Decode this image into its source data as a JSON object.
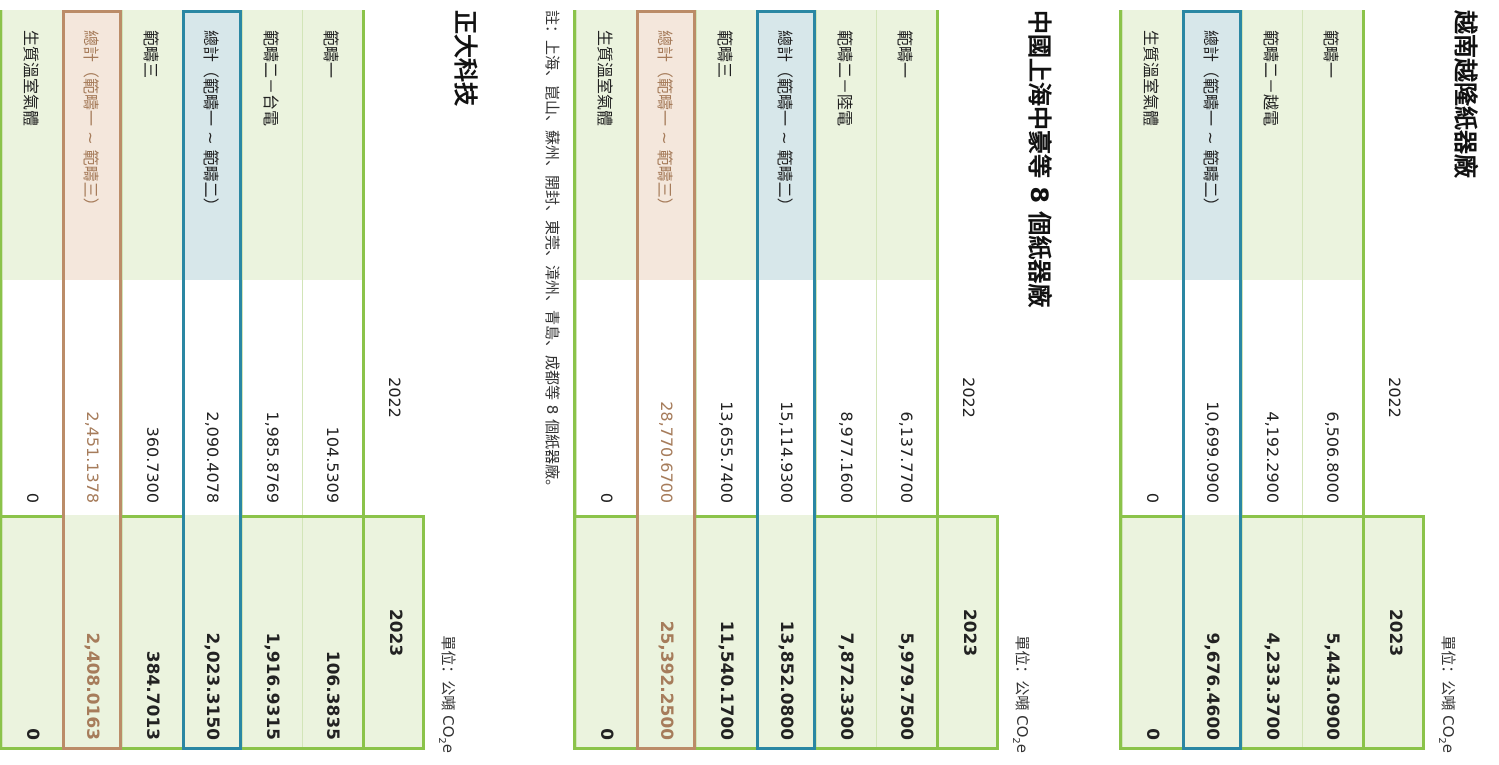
{
  "colors": {
    "green": "#8bc34a",
    "green_bg": "#ebf3de",
    "blue": "#2a87a3",
    "blue_bg": "#d7e7ea",
    "brown": "#bb8c68",
    "brown_bg": "#f4e7dc"
  },
  "sections": [
    {
      "title": "越南越隆紙器廠",
      "unit": "單位：公噸 CO",
      "unit_sub": "2",
      "unit_suffix": "e",
      "headers": [
        "",
        "2022",
        "2023"
      ],
      "rows": [
        {
          "label": "範疇一",
          "v2022": "6,506.8000",
          "v2023": "5,443.0900",
          "type": "normal"
        },
        {
          "label": "範疇二－越電",
          "v2022": "4,192.2900",
          "v2023": "4,233.3700",
          "type": "normal"
        },
        {
          "label": "總計（範疇一 ~ 範疇二）",
          "v2022": "10,699.0900",
          "v2023": "9,676.4600",
          "type": "blue"
        },
        {
          "label": "生質溫室氣體",
          "v2022": "0",
          "v2023": "0",
          "type": "normal"
        }
      ]
    },
    {
      "title": "中國上海中豪等 8 個紙器廠",
      "unit": "單位：公噸 CO",
      "unit_sub": "2",
      "unit_suffix": "e",
      "headers": [
        "",
        "2022",
        "2023"
      ],
      "rows": [
        {
          "label": "範疇一",
          "v2022": "6,137.7700",
          "v2023": "5,979.7500",
          "type": "normal"
        },
        {
          "label": "範疇二－陸電",
          "v2022": "8,977.1600",
          "v2023": "7,872.3300",
          "type": "normal"
        },
        {
          "label": "總計（範疇一 ~ 範疇二）",
          "v2022": "15,114.9300",
          "v2023": "13,852.0800",
          "type": "blue"
        },
        {
          "label": "範疇三",
          "v2022": "13,655.7400",
          "v2023": "11,540.1700",
          "type": "normal"
        },
        {
          "label": "總計（範疇一 ~ 範疇三）",
          "v2022": "28,770.6700",
          "v2023": "25,392.2500",
          "type": "brown"
        },
        {
          "label": "生質溫室氣體",
          "v2022": "0",
          "v2023": "0",
          "type": "normal"
        }
      ],
      "note": "註：上海、崑山、蘇州、開封、東莞、漳州、青島、成都等 8 個紙器廠。"
    },
    {
      "title": "正大科技",
      "unit": "單位：公噸 CO",
      "unit_sub": "2",
      "unit_suffix": "e",
      "headers": [
        "",
        "2022",
        "2023"
      ],
      "rows": [
        {
          "label": "範疇一",
          "v2022": "104.5309",
          "v2023": "106.3835",
          "type": "normal"
        },
        {
          "label": "範疇二－台電",
          "v2022": "1,985.8769",
          "v2023": "1,916.9315",
          "type": "normal"
        },
        {
          "label": "總計（範疇一 ~ 範疇二）",
          "v2022": "2,090.4078",
          "v2023": "2,023.3150",
          "type": "blue"
        },
        {
          "label": "範疇三",
          "v2022": "360.7300",
          "v2023": "384.7013",
          "type": "normal"
        },
        {
          "label": "總計（範疇一 ~ 範疇三）",
          "v2022": "2,451.1378",
          "v2023": "2,408.0163",
          "type": "brown"
        },
        {
          "label": "生質溫室氣體",
          "v2022": "0",
          "v2023": "0",
          "type": "normal"
        }
      ]
    }
  ]
}
